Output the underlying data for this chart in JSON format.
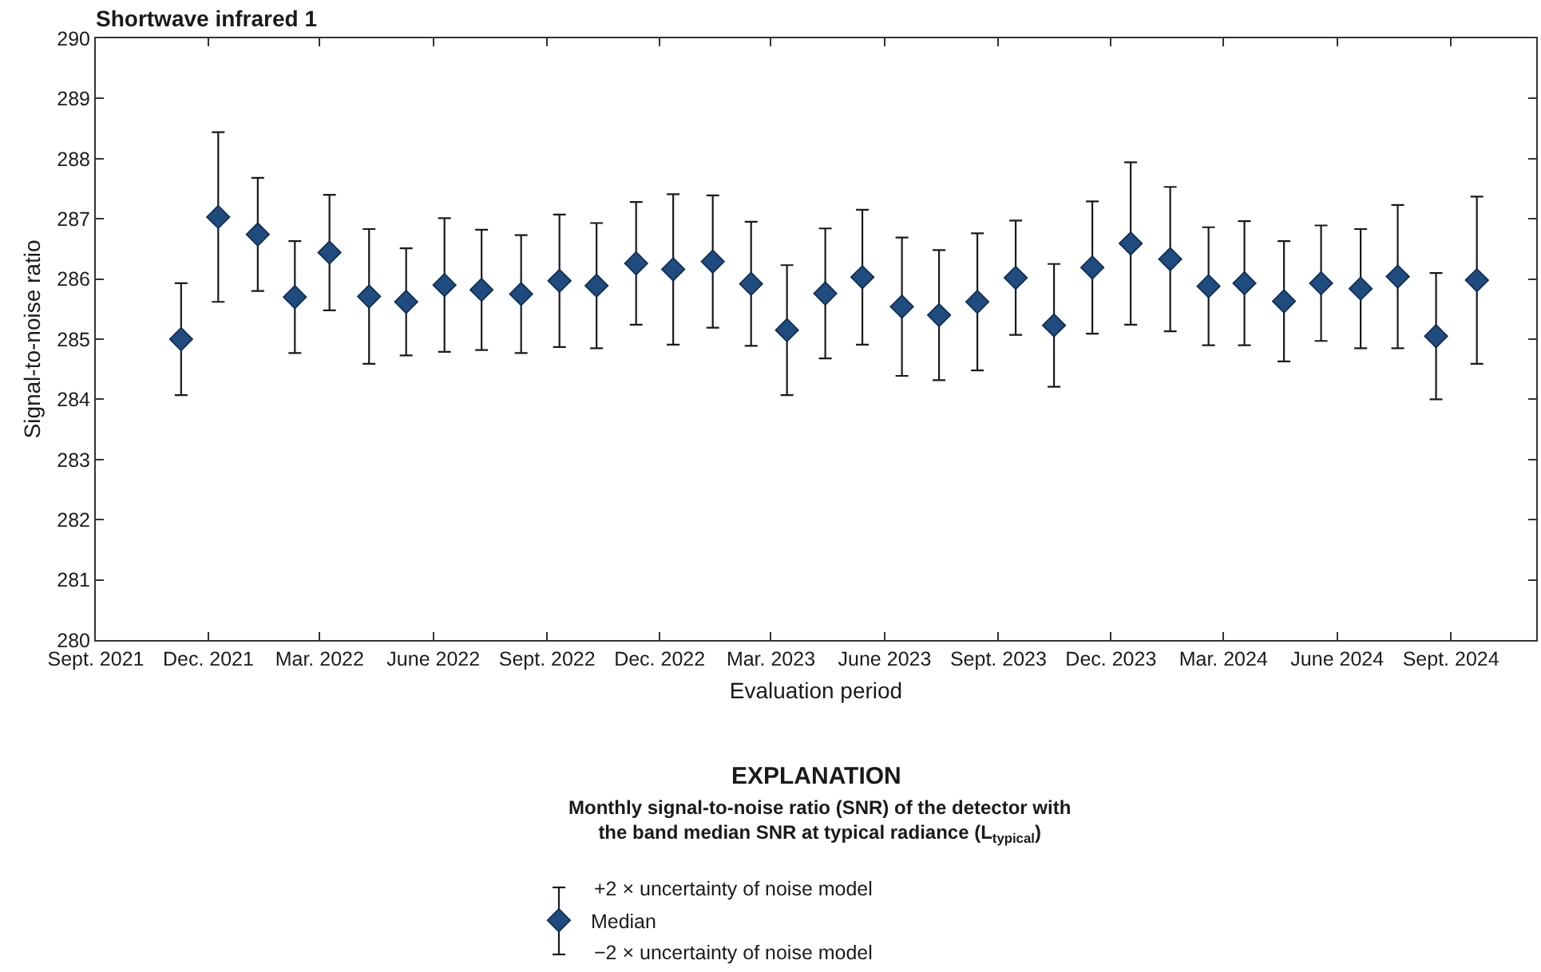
{
  "chart_data": {
    "type": "scatter",
    "title": "Shortwave infrared 1",
    "xlabel": "Evaluation period",
    "ylabel": "Signal-to-noise ratio",
    "legend_title": "Monthly signal-to-noise ratio (SNR) of the detector with the band median SNR at typical radiance (L$_{typical}$)",
    "annotations": [
      "EXPLANATION",
      "+2 × uncertainty of noise model",
      "−2 × uncertainty of noise model"
    ],
    "x": [
      "2021-11-09",
      "2021-12-09",
      "2022-01-10",
      "2022-02-09",
      "2022-03-09",
      "2022-04-10",
      "2022-05-10",
      "2022-06-10",
      "2022-07-10",
      "2022-08-11",
      "2022-09-11",
      "2022-10-11",
      "2022-11-12",
      "2022-12-12",
      "2023-01-13",
      "2023-02-13",
      "2023-03-14",
      "2023-04-14",
      "2023-05-14",
      "2023-06-15",
      "2023-07-15",
      "2023-08-15",
      "2023-09-15",
      "2023-10-16",
      "2023-11-16",
      "2023-12-17",
      "2024-01-18",
      "2024-02-18",
      "2024-03-18",
      "2024-04-19",
      "2024-05-19",
      "2024-06-20",
      "2024-07-20",
      "2024-08-20",
      "2024-09-22"
    ],
    "series": [
      {
        "name": "Median",
        "color": "#1f4b7f",
        "values": [
          285.0,
          287.03,
          286.74,
          285.7,
          286.44,
          285.71,
          285.62,
          285.9,
          285.82,
          285.75,
          285.97,
          285.89,
          286.26,
          286.16,
          286.29,
          285.92,
          285.15,
          285.76,
          286.03,
          285.54,
          285.4,
          285.62,
          286.02,
          285.23,
          286.19,
          286.59,
          286.33,
          285.88,
          285.93,
          285.63,
          285.93,
          285.84,
          286.04,
          285.05,
          285.98
        ],
        "errors": [
          0.93,
          1.41,
          0.94,
          0.93,
          0.96,
          1.12,
          0.89,
          1.11,
          1.0,
          0.98,
          1.1,
          1.04,
          1.02,
          1.25,
          1.1,
          1.03,
          1.08,
          1.08,
          1.12,
          1.15,
          1.08,
          1.14,
          0.95,
          1.02,
          1.1,
          1.35,
          1.2,
          0.98,
          1.03,
          1.0,
          0.96,
          0.99,
          1.19,
          1.05,
          1.39
        ]
      }
    ],
    "xlim": [
      "2021-09-01",
      "2024-11-09"
    ],
    "xticks": [
      {
        "value": "2021-09-01",
        "label": "Sept. 2021"
      },
      {
        "value": "2021-12-01",
        "label": "Dec. 2021"
      },
      {
        "value": "2022-03-01",
        "label": "Mar. 2022"
      },
      {
        "value": "2022-06-01",
        "label": "June 2022"
      },
      {
        "value": "2022-09-01",
        "label": "Sept. 2022"
      },
      {
        "value": "2022-12-01",
        "label": "Dec. 2022"
      },
      {
        "value": "2023-03-01",
        "label": "Mar. 2023"
      },
      {
        "value": "2023-06-01",
        "label": "June 2023"
      },
      {
        "value": "2023-09-01",
        "label": "Sept. 2023"
      },
      {
        "value": "2023-12-01",
        "label": "Dec. 2023"
      },
      {
        "value": "2024-03-01",
        "label": "Mar. 2024"
      },
      {
        "value": "2024-06-01",
        "label": "June 2024"
      },
      {
        "value": "2024-09-01",
        "label": "Sept. 2024"
      }
    ],
    "ylim": [
      280,
      290
    ],
    "yticks": [
      280,
      281,
      282,
      283,
      284,
      285,
      286,
      287,
      288,
      289,
      290
    ],
    "legend": "bottom",
    "marker": "diamond"
  }
}
